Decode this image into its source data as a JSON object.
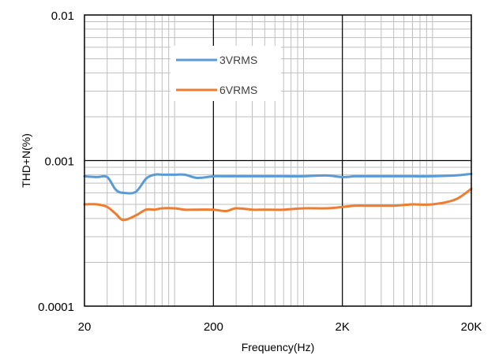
{
  "chart_data": {
    "type": "line",
    "title": "",
    "xlabel": "Frequency(Hz)",
    "ylabel": "THD+N(%)",
    "xscale": "log",
    "yscale": "log",
    "xlim": [
      20,
      20000
    ],
    "ylim": [
      0.0001,
      0.01
    ],
    "x_ticks": [
      20,
      200,
      2000,
      20000
    ],
    "x_tick_labels": [
      "20",
      "200",
      "2K",
      "20K"
    ],
    "y_ticks": [
      0.0001,
      0.001,
      0.01
    ],
    "y_tick_labels": [
      "0.0001",
      "0.001",
      "0.01"
    ],
    "grid": "major and minor (log)",
    "legend": "top-left inside plot",
    "series": [
      {
        "name": "3VRMS",
        "color": "#5b9bd5",
        "x": [
          20,
          25,
          30,
          35,
          40,
          50,
          60,
          70,
          80,
          100,
          120,
          150,
          200,
          250,
          300,
          400,
          500,
          700,
          1000,
          1500,
          2000,
          2500,
          3000,
          4000,
          5000,
          7000,
          10000,
          15000,
          20000
        ],
        "y": [
          0.00078,
          0.00077,
          0.00077,
          0.00063,
          0.0006,
          0.00061,
          0.00075,
          0.0008,
          0.0008,
          0.0008,
          0.0008,
          0.00076,
          0.00078,
          0.00078,
          0.00078,
          0.00078,
          0.00078,
          0.00078,
          0.00078,
          0.00079,
          0.00077,
          0.00078,
          0.00078,
          0.00078,
          0.00078,
          0.00078,
          0.00078,
          0.00079,
          0.00081
        ]
      },
      {
        "name": "6VRMS",
        "color": "#ed7d31",
        "x": [
          20,
          25,
          30,
          35,
          40,
          50,
          60,
          70,
          80,
          100,
          120,
          150,
          200,
          250,
          300,
          400,
          500,
          700,
          1000,
          1500,
          2000,
          2500,
          3000,
          4000,
          5000,
          7000,
          10000,
          15000,
          20000
        ],
        "y": [
          0.0005,
          0.0005,
          0.00048,
          0.00043,
          0.00039,
          0.00042,
          0.00046,
          0.00046,
          0.00047,
          0.00047,
          0.00046,
          0.00046,
          0.00046,
          0.00045,
          0.00047,
          0.00046,
          0.00046,
          0.00046,
          0.00047,
          0.00047,
          0.00048,
          0.00049,
          0.00049,
          0.00049,
          0.00049,
          0.0005,
          0.0005,
          0.00054,
          0.00064
        ]
      }
    ]
  }
}
